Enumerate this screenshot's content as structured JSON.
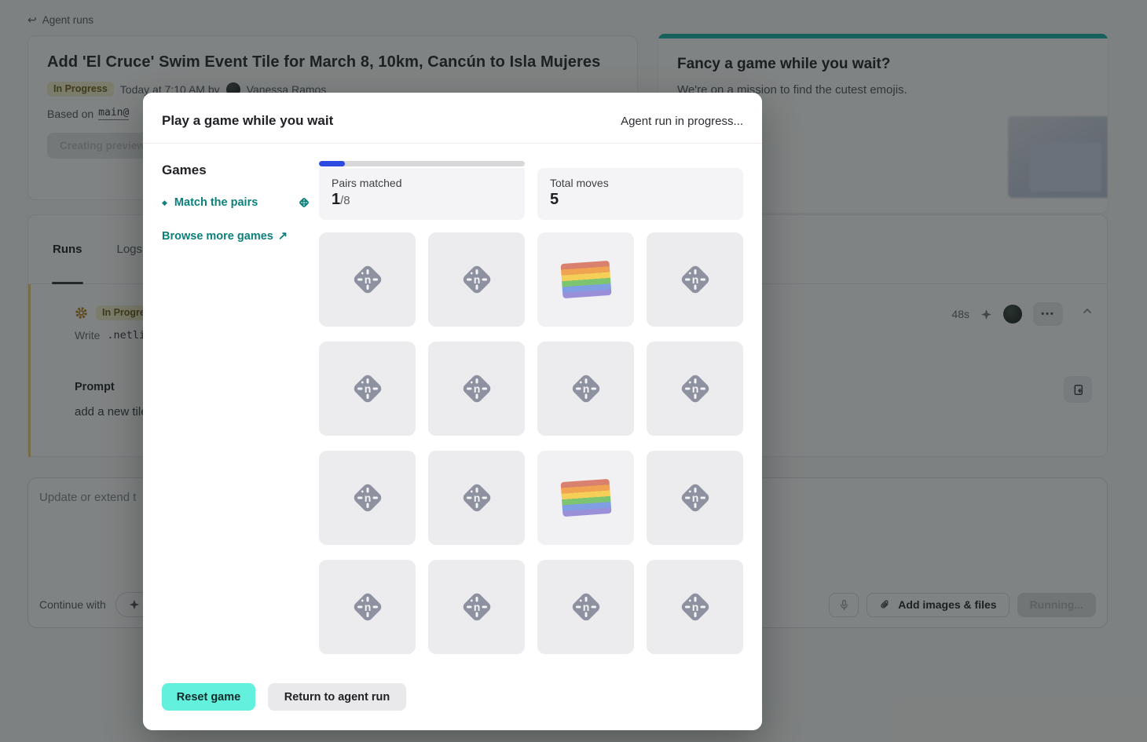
{
  "page": {
    "breadcrumb": {
      "label": "Agent runs"
    },
    "hero": {
      "title": "Add 'El Cruce' Swim Event Tile for March 8, 10km, Cancún to Isla Mujeres",
      "status_badge": "In Progress",
      "meta_time": "Today at 7:10 AM by",
      "meta_author": "Vanessa Ramos",
      "based_on_label": "Based on",
      "based_on_ref": "main@",
      "creating_button": "Creating preview"
    },
    "promo_card": {
      "title": "Fancy a game while you wait?",
      "subtitle": "We're on a mission to find the cutest emojis.",
      "accent_color": "#1fb6b0"
    },
    "runs_panel": {
      "tabs": [
        {
          "label": "Runs",
          "active": true
        },
        {
          "label": "Logs",
          "active": false
        }
      ],
      "run": {
        "status_badge": "In Progress",
        "title_partial": "a",
        "duration": "48s",
        "write_label": "Write",
        "write_path": ".netlify/",
        "prompt_label": "Prompt",
        "prompt_text": "add a new tile for"
      }
    },
    "composer": {
      "placeholder": "Update or extend t",
      "continue_label": "Continue with",
      "model_partial": "C",
      "add_files_label": "Add images & files",
      "running_label": "Running..."
    }
  },
  "modal": {
    "title": "Play a game while you wait",
    "status": "Agent run in progress...",
    "sidebar": {
      "heading": "Games",
      "active_game": "Match the pairs",
      "browse_label": "Browse more games",
      "browse_arrow": "↗"
    },
    "stats": {
      "pairs_label": "Pairs matched",
      "pairs_value": "1",
      "pairs_total": "/8",
      "moves_label": "Total moves",
      "moves_value": "5",
      "progress_pct": 12.5,
      "progress_color": "#2c49e2"
    },
    "game": {
      "cards": [
        "logo",
        "logo",
        "flag",
        "logo",
        "logo",
        "logo",
        "logo",
        "logo",
        "logo",
        "logo",
        "flag",
        "logo",
        "logo",
        "logo",
        "logo",
        "logo"
      ]
    },
    "buttons": {
      "reset": "Reset game",
      "return": "Return to agent run"
    },
    "colors": {
      "teal_text": "#0d807b",
      "reset_bg": "#63f1dd",
      "card_bg": "#ececee"
    }
  }
}
